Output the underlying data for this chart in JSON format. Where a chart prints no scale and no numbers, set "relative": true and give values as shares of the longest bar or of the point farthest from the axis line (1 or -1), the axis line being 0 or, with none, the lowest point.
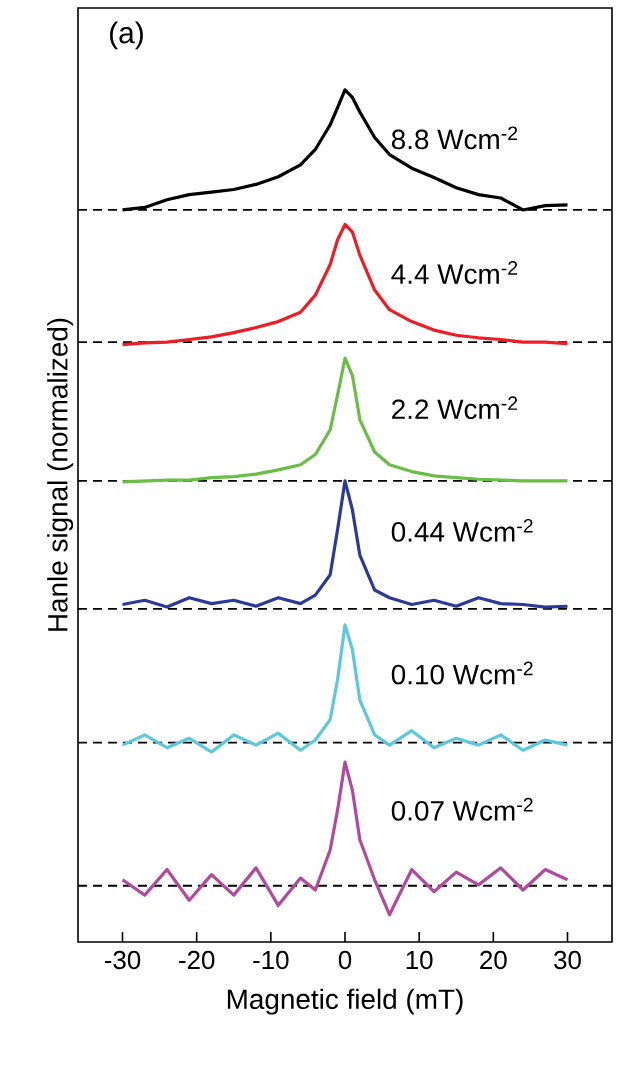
{
  "chart_data": {
    "type": "line",
    "relative": true,
    "xlabel": "Magnetic field (mT)",
    "ylabel": "Hanle signal (normalized)",
    "xlim": [
      -36,
      36
    ],
    "xticks": [
      -30,
      -20,
      -10,
      0,
      10,
      20,
      30
    ],
    "marker": "none",
    "line_style": "solid",
    "x": [
      -30,
      -27,
      -24,
      -21,
      -18,
      -15,
      -12,
      -9,
      -6,
      -4,
      -2,
      -1,
      0,
      1,
      2,
      4,
      6,
      9,
      12,
      15,
      18,
      21,
      24,
      27,
      30
    ],
    "series": [
      {
        "name": "8.8 Wcm$^{-2}$",
        "color": "#000000",
        "values": [
          0.859,
          0.862,
          0.871,
          0.877,
          0.88,
          0.883,
          0.889,
          0.898,
          0.912,
          0.93,
          0.959,
          0.979,
          1.0,
          0.991,
          0.974,
          0.944,
          0.924,
          0.908,
          0.897,
          0.885,
          0.877,
          0.873,
          0.859,
          0.864,
          0.865
        ]
      },
      {
        "name": "4.4 Wcm$^{-2}$",
        "color": "#ee1c24",
        "values": [
          0.701,
          0.703,
          0.704,
          0.707,
          0.71,
          0.715,
          0.721,
          0.728,
          0.739,
          0.759,
          0.795,
          0.824,
          0.842,
          0.833,
          0.806,
          0.765,
          0.742,
          0.728,
          0.718,
          0.712,
          0.709,
          0.707,
          0.704,
          0.704,
          0.702
        ]
      },
      {
        "name": "2.2 Wcm$^{-2}$",
        "color": "#6abd45",
        "values": [
          0.54,
          0.541,
          0.542,
          0.542,
          0.545,
          0.546,
          0.549,
          0.554,
          0.56,
          0.572,
          0.601,
          0.642,
          0.685,
          0.665,
          0.613,
          0.575,
          0.56,
          0.552,
          0.547,
          0.545,
          0.543,
          0.542,
          0.541,
          0.541,
          0.541
        ]
      },
      {
        "name": "0.44 Wcm$^{-2}$",
        "color": "#2b3a99",
        "values": [
          0.396,
          0.401,
          0.393,
          0.404,
          0.397,
          0.401,
          0.394,
          0.404,
          0.397,
          0.407,
          0.431,
          0.484,
          0.541,
          0.507,
          0.454,
          0.413,
          0.404,
          0.396,
          0.401,
          0.394,
          0.404,
          0.397,
          0.396,
          0.393,
          0.394
        ]
      },
      {
        "name": "0.10 Wcm$^{-2}$",
        "color": "#5bc8dc",
        "values": [
          0.231,
          0.243,
          0.228,
          0.239,
          0.223,
          0.243,
          0.231,
          0.245,
          0.225,
          0.237,
          0.261,
          0.308,
          0.372,
          0.343,
          0.284,
          0.243,
          0.231,
          0.248,
          0.228,
          0.239,
          0.231,
          0.243,
          0.225,
          0.237,
          0.231
        ]
      },
      {
        "name": "0.07 Wcm$^{-2}$",
        "color": "#b14a9e",
        "values": [
          0.073,
          0.055,
          0.085,
          0.049,
          0.079,
          0.055,
          0.087,
          0.043,
          0.075,
          0.061,
          0.108,
          0.155,
          0.211,
          0.178,
          0.12,
          0.073,
          0.032,
          0.085,
          0.059,
          0.082,
          0.067,
          0.087,
          0.061,
          0.085,
          0.073
        ]
      }
    ],
    "ref_lines": [
      {
        "axis": "y",
        "value": 0.859,
        "color": "#000000",
        "line_style": "dashed"
      },
      {
        "axis": "y",
        "value": 0.704,
        "color": "#000000",
        "line_style": "dashed"
      },
      {
        "axis": "y",
        "value": 0.541,
        "color": "#000000",
        "line_style": "dashed"
      },
      {
        "axis": "y",
        "value": 0.391,
        "color": "#000000",
        "line_style": "dashed"
      },
      {
        "axis": "y",
        "value": 0.234,
        "color": "#000000",
        "line_style": "dashed"
      },
      {
        "axis": "y",
        "value": 0.066,
        "color": "#000000",
        "line_style": "dashed"
      }
    ],
    "annotations": [
      "(a)"
    ]
  }
}
